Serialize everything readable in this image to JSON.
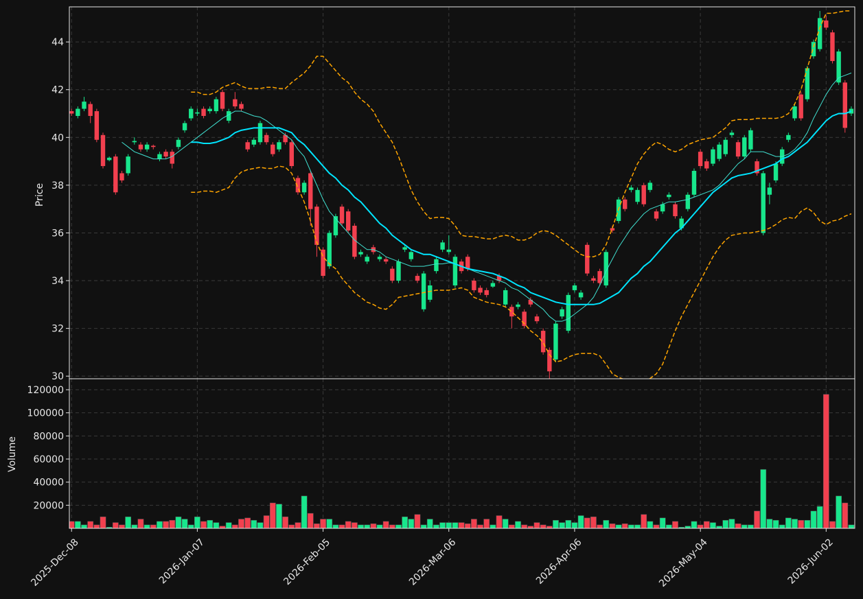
{
  "chart_data": {
    "type": "candlestick",
    "ylabel": "Price",
    "volume_label": "Volume",
    "up_color": "#18e68c",
    "down_color": "#f2404f",
    "grid": true,
    "xlim": [
      -0.35,
      124.55
    ],
    "xticks": [
      {
        "value": 0,
        "label": "2025-Dec-08"
      },
      {
        "value": 20,
        "label": "2026-Jan-07"
      },
      {
        "value": 40,
        "label": "2026-Feb-05"
      },
      {
        "value": 60,
        "label": "2026-Mar-06"
      },
      {
        "value": 80,
        "label": "2026-Apr-06"
      },
      {
        "value": 100,
        "label": "2026-May-04"
      },
      {
        "value": 120,
        "label": "2026-Jun-02"
      }
    ],
    "ylim": [
      29.89,
      45.47
    ],
    "yticks": [
      30,
      32,
      34,
      36,
      38,
      40,
      42,
      44
    ],
    "volume_ylim": [
      0,
      129500
    ],
    "volume_yticks": [
      20000,
      40000,
      60000,
      80000,
      100000,
      120000
    ],
    "open": [
      41.1,
      40.9,
      41.2,
      41.4,
      41.1,
      40.1,
      39.05,
      39.2,
      38.5,
      38.5,
      39.8,
      39.7,
      39.5,
      39.65,
      39.1,
      39.4,
      39.4,
      39.6,
      40.3,
      40.8,
      41.0,
      41.2,
      41.1,
      41.1,
      41.9,
      40.7,
      41.6,
      41.4,
      39.8,
      39.7,
      39.8,
      40.1,
      39.7,
      39.5,
      40.1,
      39.8,
      38.3,
      37.7,
      38.5,
      37.1,
      35.3,
      34.6,
      35.9,
      37.1,
      36.9,
      36.3,
      35.1,
      34.8,
      35.4,
      34.9,
      34.9,
      34.5,
      34.0,
      35.3,
      34.9,
      34.2,
      32.8,
      33.2,
      34.4,
      35.3,
      35.2,
      33.8,
      34.8,
      35.0,
      34.0,
      33.7,
      33.6,
      33.75,
      34.2,
      33.0,
      32.9,
      32.9,
      32.7,
      33.2,
      32.5,
      31.9,
      31.1,
      30.7,
      32.5,
      31.9,
      33.6,
      33.3,
      35.5,
      34.1,
      34.4,
      33.8,
      36.2,
      36.5,
      37.4,
      37.8,
      37.3,
      38.0,
      37.8,
      36.9,
      36.9,
      37.5,
      37.2,
      36.2,
      37.0,
      37.6,
      39.4,
      39.0,
      38.9,
      39.1,
      39.3,
      40.1,
      39.8,
      39.2,
      39.5,
      39.0,
      36.0,
      37.6,
      38.2,
      38.9,
      39.9,
      40.8,
      41.8,
      41.6,
      43.4,
      43.7,
      44.9,
      44.4,
      42.3,
      42.3,
      41.0
    ],
    "high": [
      41.2,
      41.3,
      41.7,
      41.5,
      41.2,
      40.2,
      39.2,
      39.3,
      38.6,
      39.3,
      40.0,
      39.8,
      39.8,
      39.7,
      39.4,
      39.5,
      39.5,
      40.0,
      40.7,
      41.3,
      41.2,
      41.3,
      41.3,
      41.7,
      42.0,
      41.2,
      41.9,
      41.5,
      39.9,
      40.0,
      40.7,
      40.2,
      39.8,
      39.9,
      40.2,
      39.9,
      38.4,
      38.2,
      38.6,
      37.2,
      35.4,
      36.1,
      36.8,
      37.2,
      37.0,
      36.4,
      35.3,
      35.1,
      35.5,
      35.1,
      35.0,
      34.6,
      34.9,
      35.5,
      35.3,
      34.3,
      34.4,
      34.0,
      35.0,
      35.7,
      35.9,
      35.1,
      34.9,
      35.1,
      34.1,
      33.8,
      33.7,
      34.0,
      34.3,
      33.7,
      33.0,
      33.1,
      32.8,
      33.3,
      32.6,
      32.0,
      31.2,
      32.3,
      32.9,
      33.5,
      33.9,
      33.6,
      35.6,
      34.2,
      34.5,
      35.3,
      36.3,
      37.5,
      37.5,
      38.0,
      37.9,
      38.1,
      38.2,
      37.0,
      37.3,
      37.7,
      37.3,
      36.7,
      37.7,
      38.7,
      39.5,
      39.1,
      39.6,
      39.8,
      40.0,
      40.3,
      39.9,
      40.1,
      40.4,
      39.1,
      38.6,
      38.1,
      39.0,
      39.6,
      40.2,
      41.4,
      41.9,
      43.0,
      44.1,
      45.3,
      45.1,
      44.5,
      43.7,
      42.4,
      41.3
    ],
    "low": [
      40.9,
      40.8,
      41.1,
      40.6,
      39.8,
      38.7,
      39.0,
      37.6,
      38.1,
      38.4,
      39.7,
      39.4,
      39.4,
      39.5,
      39.0,
      39.1,
      38.7,
      39.5,
      40.2,
      40.7,
      40.9,
      40.8,
      41.0,
      41.0,
      41.1,
      40.6,
      41.2,
      41.1,
      39.4,
      39.6,
      39.7,
      39.7,
      39.2,
      39.4,
      39.7,
      38.7,
      37.6,
      37.6,
      36.3,
      35.0,
      34.1,
      34.5,
      35.8,
      36.3,
      36.0,
      34.9,
      35.0,
      34.7,
      35.1,
      34.8,
      34.7,
      33.9,
      33.9,
      35.2,
      34.8,
      33.9,
      32.7,
      33.1,
      34.3,
      35.2,
      35.1,
      33.7,
      34.3,
      34.4,
      33.5,
      33.4,
      33.3,
      33.7,
      33.9,
      32.9,
      32.0,
      32.8,
      32.0,
      32.9,
      32.2,
      30.9,
      29.9,
      30.6,
      32.4,
      31.8,
      33.5,
      33.2,
      34.2,
      33.9,
      33.8,
      33.7,
      36.0,
      36.4,
      36.9,
      37.7,
      37.2,
      37.1,
      37.7,
      36.5,
      36.8,
      37.4,
      36.6,
      36.1,
      36.9,
      37.5,
      38.7,
      38.6,
      38.8,
      39.0,
      39.2,
      40.0,
      39.1,
      39.1,
      39.4,
      38.4,
      35.9,
      37.2,
      38.1,
      38.8,
      39.8,
      40.7,
      40.7,
      41.5,
      43.3,
      43.6,
      44.5,
      43.1,
      42.2,
      40.2,
      40.9
    ],
    "close": [
      41.0,
      41.2,
      41.5,
      40.9,
      39.9,
      38.8,
      39.15,
      37.7,
      38.2,
      39.2,
      39.85,
      39.5,
      39.7,
      39.6,
      39.3,
      39.2,
      38.9,
      39.9,
      40.6,
      41.2,
      41.05,
      40.9,
      41.2,
      41.6,
      41.2,
      41.1,
      41.3,
      41.2,
      39.5,
      39.9,
      40.6,
      39.8,
      39.3,
      39.8,
      39.8,
      38.8,
      37.7,
      38.1,
      37.0,
      35.5,
      34.2,
      36.0,
      36.7,
      36.4,
      36.1,
      35.0,
      35.2,
      35.0,
      35.2,
      35.0,
      34.8,
      34.0,
      34.8,
      35.4,
      35.2,
      34.0,
      34.3,
      33.8,
      34.9,
      35.6,
      35.3,
      35.0,
      34.4,
      34.5,
      33.6,
      33.5,
      33.4,
      33.9,
      34.0,
      33.6,
      32.5,
      33.0,
      32.1,
      33.0,
      32.3,
      31.0,
      30.2,
      32.2,
      32.8,
      33.4,
      33.8,
      33.5,
      34.3,
      34.0,
      33.9,
      35.2,
      36.1,
      37.4,
      37.0,
      37.9,
      37.8,
      37.2,
      38.1,
      36.6,
      37.2,
      37.6,
      36.7,
      36.6,
      37.6,
      38.6,
      38.8,
      38.7,
      39.5,
      39.7,
      39.9,
      40.2,
      39.2,
      40.0,
      40.3,
      38.5,
      38.5,
      37.9,
      38.9,
      39.5,
      40.1,
      41.3,
      40.8,
      42.9,
      44.0,
      45.0,
      44.6,
      43.2,
      43.6,
      40.4,
      41.2
    ],
    "volume": [
      6000,
      6000,
      3000,
      6000,
      3000,
      10000,
      1000,
      5000,
      3000,
      10000,
      3000,
      8000,
      3000,
      3000,
      6000,
      6000,
      7000,
      10000,
      8000,
      3000,
      10000,
      6000,
      7000,
      5000,
      2000,
      5000,
      3000,
      8000,
      9000,
      7000,
      5000,
      11000,
      22000,
      21000,
      10000,
      3000,
      5000,
      28000,
      13000,
      4000,
      8000,
      8000,
      3000,
      3000,
      6000,
      5000,
      3000,
      3000,
      4000,
      3000,
      6000,
      3000,
      3000,
      10000,
      8000,
      12000,
      3000,
      8000,
      3000,
      5000,
      5000,
      5000,
      5000,
      4000,
      8000,
      3000,
      8000,
      3000,
      11000,
      8000,
      3000,
      6000,
      3000,
      2000,
      5000,
      3000,
      2000,
      7000,
      5000,
      7000,
      5000,
      11000,
      9000,
      10000,
      3000,
      7000,
      4000,
      3000,
      4000,
      3000,
      3000,
      12000,
      6000,
      3000,
      9000,
      3000,
      6000,
      1000,
      2000,
      6000,
      3000,
      6000,
      5000,
      2000,
      7000,
      8000,
      4000,
      3000,
      3000,
      15000,
      51000,
      8000,
      7000,
      3000,
      9000,
      8000,
      7000,
      7000,
      15000,
      19000,
      116000,
      6000,
      28000,
      22000,
      3000
    ],
    "lines": [
      {
        "color": "#40e0d0",
        "linewidth": 1,
        "linestyle": "solid",
        "values": [
          null,
          null,
          null,
          null,
          null,
          null,
          null,
          null,
          39.8,
          39.6,
          39.4,
          39.3,
          39.2,
          39.1,
          39.1,
          39.1,
          39.2,
          39.4,
          39.6,
          39.8,
          40.0,
          40.2,
          40.4,
          40.6,
          40.8,
          40.95,
          41.1,
          41.1,
          41.0,
          40.9,
          40.85,
          40.7,
          40.5,
          40.3,
          40.1,
          39.9,
          39.5,
          39.2,
          38.6,
          38.0,
          37.4,
          36.9,
          36.6,
          36.3,
          36.0,
          35.7,
          35.5,
          35.3,
          35.3,
          35.2,
          35.0,
          34.9,
          34.8,
          34.7,
          34.6,
          34.6,
          34.6,
          34.65,
          34.7,
          34.7,
          34.75,
          34.7,
          34.6,
          34.5,
          34.4,
          34.3,
          34.2,
          34.1,
          34.0,
          33.9,
          33.7,
          33.6,
          33.4,
          33.2,
          33.0,
          32.8,
          32.5,
          32.3,
          32.3,
          32.4,
          32.6,
          32.8,
          33.0,
          33.3,
          33.8,
          34.4,
          34.9,
          35.4,
          35.8,
          36.2,
          36.5,
          36.8,
          37.0,
          37.1,
          37.2,
          37.3,
          37.3,
          37.35,
          37.4,
          37.5,
          37.6,
          37.7,
          37.8,
          38.0,
          38.3,
          38.6,
          38.9,
          39.1,
          39.4,
          39.4,
          39.4,
          39.3,
          39.2,
          39.2,
          39.3,
          39.5,
          39.8,
          40.2,
          40.8,
          41.3,
          41.8,
          42.2,
          42.5,
          42.6,
          42.7
        ]
      },
      {
        "color": "#00e5ff",
        "linewidth": 2,
        "linestyle": "solid",
        "values": [
          null,
          null,
          null,
          null,
          null,
          null,
          null,
          null,
          null,
          null,
          null,
          null,
          null,
          null,
          null,
          null,
          null,
          null,
          null,
          39.8,
          39.8,
          39.75,
          39.75,
          39.8,
          39.9,
          40.0,
          40.2,
          40.3,
          40.35,
          40.4,
          40.4,
          40.4,
          40.4,
          40.4,
          40.3,
          40.2,
          39.9,
          39.7,
          39.4,
          39.1,
          38.8,
          38.5,
          38.3,
          38.0,
          37.8,
          37.5,
          37.3,
          37.0,
          36.7,
          36.4,
          36.2,
          35.9,
          35.7,
          35.5,
          35.3,
          35.2,
          35.1,
          35.1,
          35.0,
          34.9,
          34.8,
          34.7,
          34.6,
          34.5,
          34.45,
          34.4,
          34.35,
          34.3,
          34.2,
          34.1,
          33.95,
          33.8,
          33.7,
          33.5,
          33.4,
          33.3,
          33.2,
          33.1,
          33.05,
          33.0,
          33.0,
          33.0,
          33.0,
          33.0,
          33.05,
          33.2,
          33.35,
          33.5,
          33.8,
          34.1,
          34.3,
          34.6,
          34.8,
          35.1,
          35.4,
          35.7,
          36.0,
          36.2,
          36.5,
          36.8,
          37.1,
          37.4,
          37.7,
          37.9,
          38.1,
          38.3,
          38.4,
          38.45,
          38.5,
          38.6,
          38.7,
          38.8,
          38.9,
          39.1,
          39.2,
          39.4,
          39.6,
          39.8,
          40.1,
          40.4,
          40.7,
          40.9,
          41.0,
          41.0,
          41.1
        ]
      },
      {
        "color": "#ffa500",
        "linewidth": 1.5,
        "linestyle": "dashed",
        "values": [
          null,
          null,
          null,
          null,
          null,
          null,
          null,
          null,
          null,
          null,
          null,
          null,
          null,
          null,
          null,
          null,
          null,
          null,
          null,
          41.9,
          41.9,
          41.8,
          41.8,
          41.9,
          42.1,
          42.2,
          42.3,
          42.15,
          42.05,
          42.05,
          42.05,
          42.1,
          42.1,
          42.05,
          42.05,
          42.3,
          42.5,
          42.7,
          43.0,
          43.4,
          43.4,
          43.1,
          42.8,
          42.5,
          42.3,
          41.9,
          41.6,
          41.4,
          41.1,
          40.6,
          40.2,
          39.8,
          39.2,
          38.5,
          37.8,
          37.3,
          36.9,
          36.6,
          36.65,
          36.65,
          36.6,
          36.3,
          35.9,
          35.85,
          35.85,
          35.8,
          35.75,
          35.75,
          35.85,
          35.9,
          35.85,
          35.7,
          35.7,
          35.8,
          36.0,
          36.1,
          36.05,
          35.9,
          35.7,
          35.5,
          35.3,
          35.1,
          35.0,
          35.0,
          35.1,
          35.5,
          36.2,
          37.0,
          37.7,
          38.3,
          38.9,
          39.3,
          39.6,
          39.8,
          39.7,
          39.5,
          39.4,
          39.5,
          39.7,
          39.8,
          39.9,
          39.95,
          40.0,
          40.2,
          40.4,
          40.7,
          40.75,
          40.75,
          40.75,
          40.8,
          40.8,
          40.8,
          40.8,
          40.85,
          41.0,
          41.4,
          42.0,
          42.9,
          43.8,
          44.6,
          45.2,
          45.2,
          45.25,
          45.3,
          45.3
        ]
      },
      {
        "color": "#ffa500",
        "linewidth": 1.5,
        "linestyle": "dashed",
        "values": [
          null,
          null,
          null,
          null,
          null,
          null,
          null,
          null,
          null,
          null,
          null,
          null,
          null,
          null,
          null,
          null,
          null,
          null,
          null,
          37.7,
          37.7,
          37.75,
          37.75,
          37.7,
          37.8,
          37.9,
          38.3,
          38.55,
          38.65,
          38.7,
          38.75,
          38.7,
          38.7,
          38.8,
          38.75,
          38.5,
          37.9,
          37.3,
          36.5,
          35.6,
          35.0,
          34.7,
          34.5,
          34.1,
          33.8,
          33.5,
          33.3,
          33.1,
          33.0,
          32.85,
          32.8,
          33.0,
          33.3,
          33.35,
          33.4,
          33.45,
          33.5,
          33.55,
          33.6,
          33.6,
          33.6,
          33.65,
          33.7,
          33.6,
          33.3,
          33.2,
          33.1,
          33.05,
          33.0,
          32.9,
          32.7,
          32.45,
          32.2,
          31.9,
          31.7,
          31.4,
          30.9,
          30.6,
          30.65,
          30.8,
          30.9,
          30.95,
          30.95,
          30.95,
          30.85,
          30.5,
          30.1,
          29.95,
          29.85,
          29.8,
          29.75,
          29.8,
          29.9,
          30.1,
          30.5,
          31.2,
          31.9,
          32.5,
          33.0,
          33.5,
          34.0,
          34.5,
          35.0,
          35.4,
          35.7,
          35.9,
          35.95,
          36.0,
          36.0,
          36.05,
          36.1,
          36.2,
          36.35,
          36.55,
          36.65,
          36.6,
          36.9,
          37.05,
          36.85,
          36.5,
          36.35,
          36.5,
          36.55,
          36.7,
          36.8
        ]
      }
    ]
  }
}
